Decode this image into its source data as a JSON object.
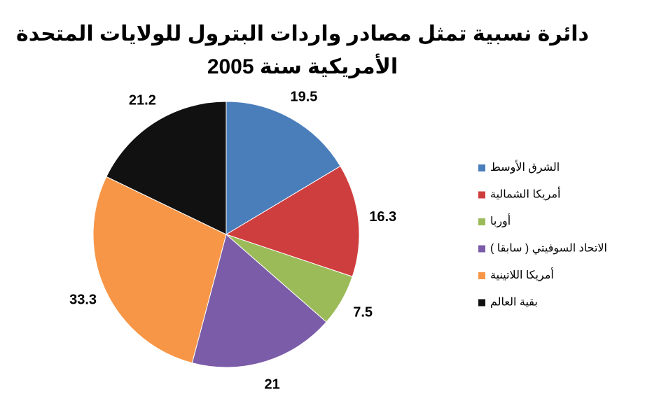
{
  "chart_data": {
    "type": "pie",
    "title": [
      "دائرة نسبية تمثل مصادر واردات البترول للولايات المتحدة",
      "الأمريكية سنة 2005"
    ],
    "categories": [
      "الشرق الأوسط",
      "أمريكا الشمالية",
      "أوربا",
      "الاتحاد السوفيتي ( سابقا )",
      "أمريكا اللاتينية",
      "بقية العالم"
    ],
    "values": [
      19.5,
      16.3,
      7.5,
      21,
      33.3,
      21.2
    ],
    "colors": [
      "#4a7ebb",
      "#cf3e3e",
      "#9bbb59",
      "#7b5ca8",
      "#f79646",
      "#111111"
    ],
    "legend": "right"
  }
}
